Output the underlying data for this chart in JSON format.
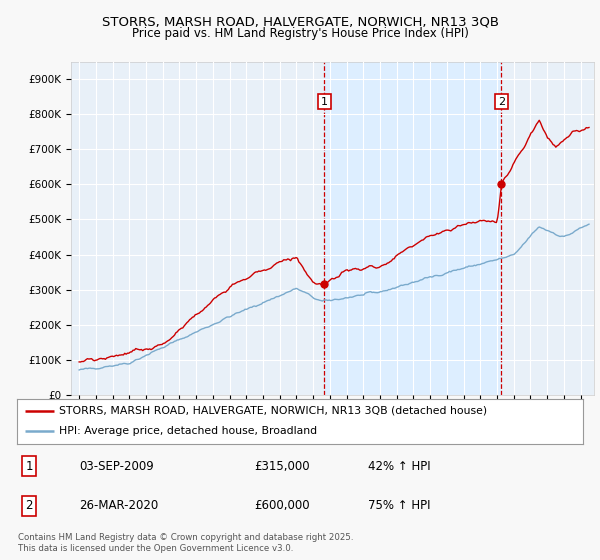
{
  "title": "STORRS, MARSH ROAD, HALVERGATE, NORWICH, NR13 3QB",
  "subtitle": "Price paid vs. HM Land Registry's House Price Index (HPI)",
  "legend_line1": "STORRS, MARSH ROAD, HALVERGATE, NORWICH, NR13 3QB (detached house)",
  "legend_line2": "HPI: Average price, detached house, Broadland",
  "annotation1_label": "1",
  "annotation1_date": "03-SEP-2009",
  "annotation1_price": "£315,000",
  "annotation1_hpi": "42% ↑ HPI",
  "annotation1_year": 2009.67,
  "annotation1_value": 315000,
  "annotation2_label": "2",
  "annotation2_date": "26-MAR-2020",
  "annotation2_price": "£600,000",
  "annotation2_hpi": "75% ↑ HPI",
  "annotation2_year": 2020.25,
  "annotation2_value": 600000,
  "red_color": "#cc0000",
  "blue_color": "#7aaacc",
  "highlight_color": "#ddeeff",
  "plot_bg_color": "#e8f0f8",
  "grid_color": "#ffffff",
  "footer": "Contains HM Land Registry data © Crown copyright and database right 2025.\nThis data is licensed under the Open Government Licence v3.0.",
  "ylim": [
    0,
    950000
  ],
  "yticks": [
    0,
    100000,
    200000,
    300000,
    400000,
    500000,
    600000,
    700000,
    800000,
    900000
  ],
  "ytick_labels": [
    "£0",
    "£100K",
    "£200K",
    "£300K",
    "£400K",
    "£500K",
    "£600K",
    "£700K",
    "£800K",
    "£900K"
  ],
  "xlim": [
    1994.5,
    2025.8
  ],
  "xticks": [
    1995,
    1996,
    1997,
    1998,
    1999,
    2000,
    2001,
    2002,
    2003,
    2004,
    2005,
    2006,
    2007,
    2008,
    2009,
    2010,
    2011,
    2012,
    2013,
    2014,
    2015,
    2016,
    2017,
    2018,
    2019,
    2020,
    2021,
    2022,
    2023,
    2024,
    2025
  ]
}
